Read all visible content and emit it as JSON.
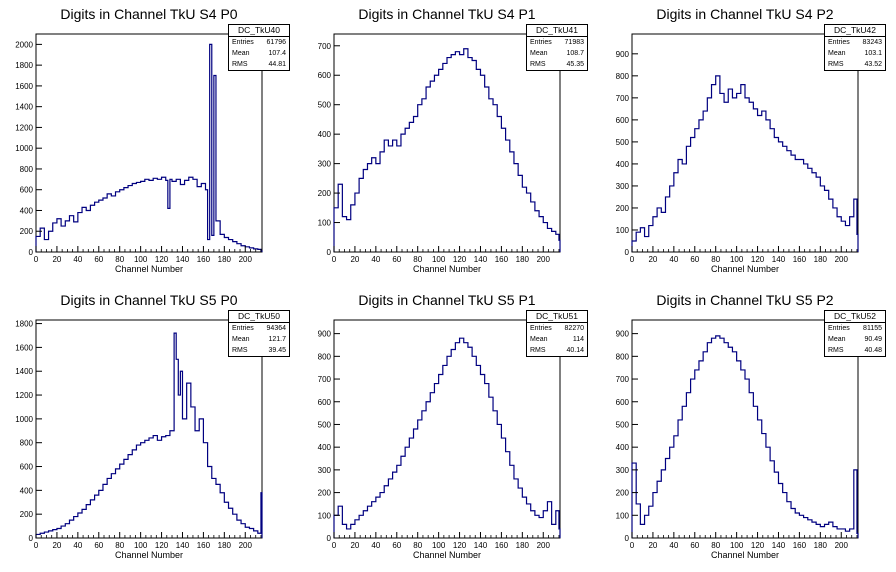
{
  "chart_data": [
    {
      "type": "histogram",
      "title": "Digits in Channel TkU S4 P0",
      "xlabel": "Channel Number",
      "ylabel": "",
      "xlim": [
        0,
        216
      ],
      "ylim": [
        0,
        2100
      ],
      "xticks": [
        0,
        20,
        40,
        60,
        80,
        100,
        120,
        140,
        160,
        180,
        200
      ],
      "yticks": [
        200,
        400,
        600,
        800,
        1000,
        1200,
        1400,
        1600,
        1800,
        2000
      ],
      "stats": {
        "name": "DC_TkU40",
        "entries": "61796",
        "mean": "107.4",
        "rms": "44.81"
      },
      "x": [
        0,
        4,
        8,
        12,
        16,
        20,
        24,
        28,
        32,
        36,
        40,
        44,
        48,
        52,
        56,
        60,
        64,
        68,
        72,
        76,
        80,
        84,
        88,
        92,
        96,
        100,
        104,
        108,
        112,
        116,
        120,
        124,
        126,
        128,
        130,
        134,
        138,
        142,
        146,
        150,
        154,
        158,
        162,
        164,
        166,
        168,
        170,
        172,
        176,
        180,
        184,
        188,
        192,
        196,
        200,
        204,
        208,
        212,
        215
      ],
      "values": [
        150,
        230,
        120,
        200,
        280,
        320,
        250,
        300,
        350,
        290,
        380,
        430,
        400,
        450,
        480,
        500,
        520,
        560,
        540,
        580,
        600,
        620,
        640,
        660,
        670,
        680,
        700,
        690,
        710,
        700,
        720,
        690,
        420,
        700,
        680,
        700,
        650,
        690,
        720,
        700,
        630,
        660,
        600,
        120,
        2000,
        160,
        1700,
        300,
        170,
        140,
        120,
        100,
        80,
        60,
        50,
        40,
        30,
        25,
        10
      ]
    },
    {
      "type": "histogram",
      "title": "Digits in Channel TkU S4 P1",
      "xlabel": "Channel Number",
      "ylabel": "",
      "xlim": [
        0,
        216
      ],
      "ylim": [
        0,
        740
      ],
      "xticks": [
        0,
        20,
        40,
        60,
        80,
        100,
        120,
        140,
        160,
        180,
        200
      ],
      "yticks": [
        100,
        200,
        300,
        400,
        500,
        600,
        700
      ],
      "stats": {
        "name": "DC_TkU41",
        "entries": "71983",
        "mean": "108.7",
        "rms": "45.35"
      },
      "x": [
        0,
        4,
        8,
        12,
        16,
        20,
        24,
        28,
        32,
        36,
        40,
        44,
        48,
        52,
        56,
        60,
        64,
        68,
        72,
        76,
        80,
        84,
        88,
        92,
        96,
        100,
        104,
        108,
        112,
        116,
        120,
        124,
        128,
        132,
        136,
        140,
        144,
        148,
        152,
        156,
        160,
        164,
        168,
        172,
        176,
        180,
        184,
        188,
        192,
        196,
        200,
        204,
        208,
        212,
        215
      ],
      "values": [
        150,
        230,
        120,
        110,
        160,
        200,
        250,
        280,
        300,
        320,
        300,
        340,
        380,
        360,
        380,
        360,
        400,
        420,
        440,
        460,
        500,
        520,
        560,
        580,
        600,
        620,
        640,
        660,
        670,
        680,
        670,
        690,
        660,
        650,
        620,
        600,
        560,
        520,
        500,
        460,
        420,
        380,
        340,
        300,
        260,
        220,
        200,
        170,
        140,
        120,
        100,
        80,
        70,
        60,
        40
      ]
    },
    {
      "type": "histogram",
      "title": "Digits in Channel TkU S4 P2",
      "xlabel": "Channel Number",
      "ylabel": "",
      "xlim": [
        0,
        216
      ],
      "ylim": [
        0,
        990
      ],
      "xticks": [
        0,
        20,
        40,
        60,
        80,
        100,
        120,
        140,
        160,
        180,
        200
      ],
      "yticks": [
        100,
        200,
        300,
        400,
        500,
        600,
        700,
        800,
        900
      ],
      "stats": {
        "name": "DC_TkU42",
        "entries": "83243",
        "mean": "103.1",
        "rms": "43.52"
      },
      "x": [
        0,
        4,
        8,
        12,
        16,
        20,
        24,
        28,
        32,
        36,
        40,
        44,
        48,
        52,
        56,
        60,
        64,
        68,
        72,
        76,
        80,
        84,
        88,
        92,
        96,
        100,
        104,
        108,
        112,
        116,
        120,
        124,
        128,
        132,
        136,
        140,
        144,
        148,
        152,
        156,
        160,
        164,
        168,
        172,
        176,
        180,
        184,
        188,
        192,
        196,
        200,
        204,
        208,
        212,
        215
      ],
      "values": [
        50,
        90,
        110,
        70,
        120,
        160,
        200,
        180,
        250,
        300,
        360,
        420,
        400,
        480,
        520,
        560,
        600,
        640,
        700,
        760,
        800,
        720,
        680,
        740,
        700,
        720,
        760,
        700,
        680,
        650,
        620,
        640,
        600,
        560,
        520,
        500,
        480,
        460,
        440,
        420,
        420,
        400,
        380,
        360,
        340,
        300,
        280,
        240,
        200,
        160,
        140,
        120,
        160,
        240,
        80
      ]
    },
    {
      "type": "histogram",
      "title": "Digits in Channel TkU S5 P0",
      "xlabel": "Channel Number",
      "ylabel": "",
      "xlim": [
        0,
        216
      ],
      "ylim": [
        0,
        1830
      ],
      "xticks": [
        0,
        20,
        40,
        60,
        80,
        100,
        120,
        140,
        160,
        180,
        200
      ],
      "yticks": [
        200,
        400,
        600,
        800,
        1000,
        1200,
        1400,
        1600,
        1800
      ],
      "stats": {
        "name": "DC_TkU50",
        "entries": "94364",
        "mean": "121.7",
        "rms": "39.45"
      },
      "x": [
        0,
        4,
        8,
        12,
        16,
        20,
        24,
        28,
        32,
        36,
        40,
        44,
        48,
        52,
        56,
        60,
        64,
        68,
        72,
        76,
        80,
        84,
        88,
        92,
        96,
        100,
        104,
        108,
        112,
        116,
        120,
        124,
        128,
        132,
        134,
        136,
        138,
        140,
        144,
        148,
        152,
        156,
        160,
        164,
        168,
        172,
        176,
        180,
        184,
        188,
        192,
        196,
        200,
        204,
        208,
        212,
        215
      ],
      "values": [
        30,
        40,
        50,
        60,
        70,
        80,
        100,
        120,
        150,
        180,
        210,
        240,
        280,
        320,
        360,
        400,
        450,
        500,
        540,
        580,
        620,
        660,
        700,
        740,
        780,
        800,
        820,
        840,
        860,
        820,
        850,
        860,
        900,
        1720,
        1500,
        1200,
        1400,
        1000,
        1300,
        1100,
        900,
        1000,
        800,
        600,
        500,
        450,
        380,
        300,
        250,
        200,
        150,
        120,
        90,
        80,
        60,
        40,
        380
      ]
    },
    {
      "type": "histogram",
      "title": "Digits in Channel TkU S5 P1",
      "xlabel": "Channel Number",
      "ylabel": "",
      "xlim": [
        0,
        216
      ],
      "ylim": [
        0,
        960
      ],
      "xticks": [
        0,
        20,
        40,
        60,
        80,
        100,
        120,
        140,
        160,
        180,
        200
      ],
      "yticks": [
        100,
        200,
        300,
        400,
        500,
        600,
        700,
        800,
        900
      ],
      "stats": {
        "name": "DC_TkU51",
        "entries": "82270",
        "mean": "114",
        "rms": "40.14"
      },
      "x": [
        0,
        4,
        8,
        12,
        16,
        20,
        24,
        28,
        32,
        36,
        40,
        44,
        48,
        52,
        56,
        60,
        64,
        68,
        72,
        76,
        80,
        84,
        88,
        92,
        96,
        100,
        104,
        108,
        112,
        116,
        120,
        124,
        128,
        132,
        136,
        140,
        144,
        148,
        152,
        156,
        160,
        164,
        168,
        172,
        176,
        180,
        184,
        188,
        192,
        196,
        200,
        204,
        208,
        212,
        215
      ],
      "values": [
        100,
        140,
        60,
        40,
        60,
        80,
        100,
        120,
        140,
        160,
        180,
        200,
        230,
        260,
        290,
        320,
        360,
        400,
        440,
        480,
        520,
        560,
        600,
        640,
        680,
        720,
        760,
        800,
        830,
        860,
        880,
        860,
        840,
        800,
        760,
        720,
        680,
        620,
        560,
        500,
        440,
        380,
        320,
        260,
        220,
        180,
        150,
        120,
        100,
        90,
        120,
        160,
        60,
        120,
        40
      ]
    },
    {
      "type": "histogram",
      "title": "Digits in Channel TkU S5 P2",
      "xlabel": "Channel Number",
      "ylabel": "",
      "xlim": [
        0,
        216
      ],
      "ylim": [
        0,
        960
      ],
      "xticks": [
        0,
        20,
        40,
        60,
        80,
        100,
        120,
        140,
        160,
        180,
        200
      ],
      "yticks": [
        100,
        200,
        300,
        400,
        500,
        600,
        700,
        800,
        900
      ],
      "stats": {
        "name": "DC_TkU52",
        "entries": "81155",
        "mean": "90.49",
        "rms": "40.48"
      },
      "x": [
        0,
        4,
        8,
        12,
        16,
        20,
        24,
        28,
        32,
        36,
        40,
        44,
        48,
        52,
        56,
        60,
        64,
        68,
        72,
        76,
        80,
        84,
        88,
        92,
        96,
        100,
        104,
        108,
        112,
        116,
        120,
        124,
        128,
        132,
        136,
        140,
        144,
        148,
        152,
        156,
        160,
        164,
        168,
        172,
        176,
        180,
        184,
        188,
        192,
        196,
        200,
        204,
        208,
        212,
        215
      ],
      "values": [
        330,
        150,
        60,
        100,
        140,
        200,
        250,
        300,
        350,
        400,
        450,
        520,
        580,
        640,
        700,
        740,
        780,
        820,
        860,
        880,
        890,
        880,
        860,
        840,
        820,
        780,
        740,
        700,
        640,
        580,
        520,
        460,
        400,
        340,
        290,
        240,
        200,
        160,
        130,
        110,
        100,
        90,
        80,
        70,
        60,
        50,
        60,
        70,
        50,
        40,
        40,
        30,
        40,
        300,
        20
      ]
    }
  ]
}
